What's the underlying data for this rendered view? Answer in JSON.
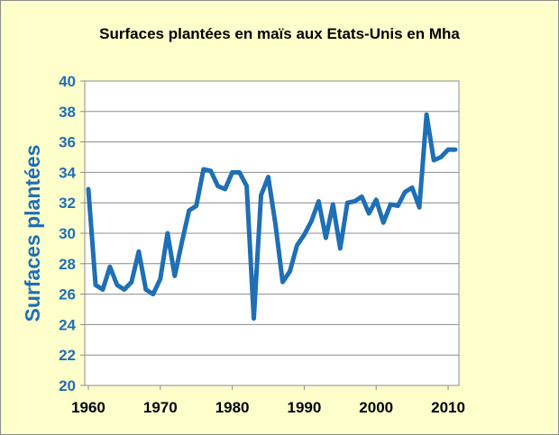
{
  "chart_data": {
    "type": "line",
    "title": "Surfaces plantées en maïs aux Etats-Unis en Mha",
    "xlabel": "",
    "ylabel": "Surfaces plantées",
    "xlim": [
      1959.5,
      2011.5
    ],
    "ylim": [
      20,
      40
    ],
    "yticks": [
      20,
      22,
      24,
      26,
      28,
      30,
      32,
      34,
      36,
      38,
      40
    ],
    "xticks": [
      1960,
      1970,
      1980,
      1990,
      2000,
      2010
    ],
    "grid": true,
    "legend": "none",
    "colors": {
      "line": "#1f6fb5",
      "ytick": "#1f6fb5",
      "background": "#ffffcc",
      "plot_bg": "#ffffff"
    },
    "series": [
      {
        "x": [
          1960,
          1961,
          1962,
          1963,
          1964,
          1965,
          1966,
          1967,
          1968,
          1969,
          1970,
          1971,
          1972,
          1973,
          1974,
          1975,
          1976,
          1977,
          1978,
          1979,
          1980,
          1981,
          1982,
          1983,
          1984,
          1985,
          1986,
          1987,
          1988,
          1989,
          1990,
          1991,
          1992,
          1993,
          1994,
          1995,
          1996,
          1997,
          1998,
          1999,
          2000,
          2001,
          2002,
          2003,
          2004,
          2005,
          2006,
          2007,
          2008,
          2009,
          2010,
          2011
        ],
        "values": [
          32.9,
          26.6,
          26.3,
          27.8,
          26.6,
          26.3,
          26.8,
          28.8,
          26.3,
          26.0,
          27.0,
          30.0,
          27.2,
          29.4,
          31.5,
          31.8,
          34.2,
          34.1,
          33.1,
          32.9,
          34.0,
          34.0,
          33.1,
          24.4,
          32.5,
          33.7,
          30.6,
          26.8,
          27.5,
          29.2,
          29.9,
          30.8,
          32.1,
          29.7,
          31.9,
          29.0,
          32.0,
          32.1,
          32.4,
          31.3,
          32.2,
          30.7,
          31.9,
          31.8,
          32.7,
          33.0,
          31.7,
          37.8,
          34.8,
          35.0,
          35.5,
          35.5
        ]
      }
    ]
  }
}
